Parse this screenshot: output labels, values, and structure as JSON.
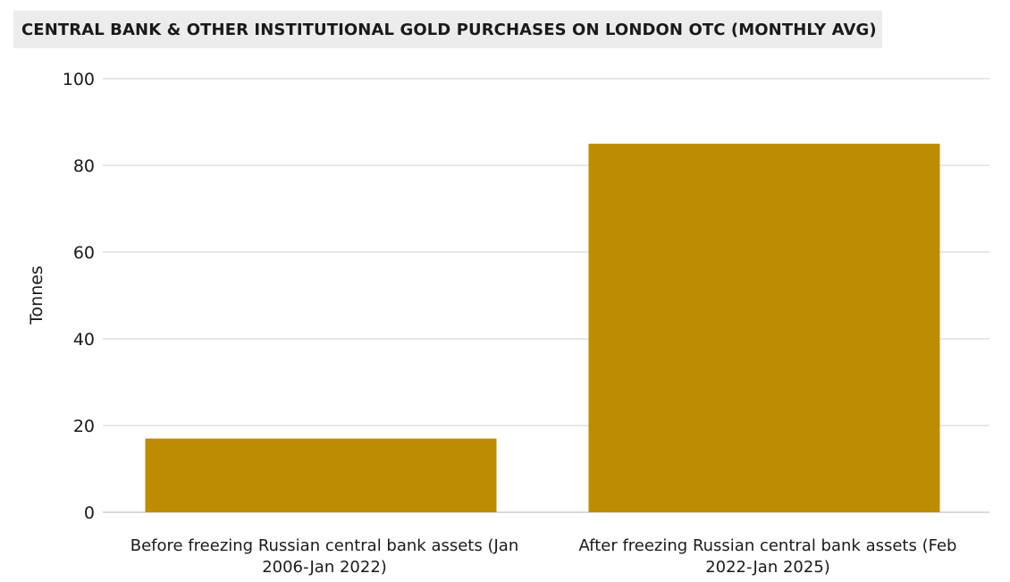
{
  "chart_data": {
    "type": "bar",
    "title": "CENTRAL BANK & OTHER INSTITUTIONAL GOLD PURCHASES ON LONDON OTC (MONTHLY AVG)",
    "xlabel": "",
    "ylabel": "Tonnes",
    "ylim": [
      0,
      100
    ],
    "yticks": [
      0,
      20,
      40,
      60,
      80,
      100
    ],
    "categories": [
      "Before freezing Russian central bank assets (Jan 2006-Jan 2022)",
      "After freezing Russian central bank assets (Feb 2022-Jan 2025)"
    ],
    "category_lines": [
      [
        "Before freezing Russian central bank assets (Jan",
        "2006-Jan 2022)"
      ],
      [
        "After freezing Russian central bank assets (Feb",
        "2022-Jan 2025)"
      ]
    ],
    "values": [
      17,
      85
    ],
    "grid": true,
    "colors": {
      "bar": "#bd8c00",
      "grid": "#cfcfcf",
      "title_background": "#ececec"
    }
  }
}
